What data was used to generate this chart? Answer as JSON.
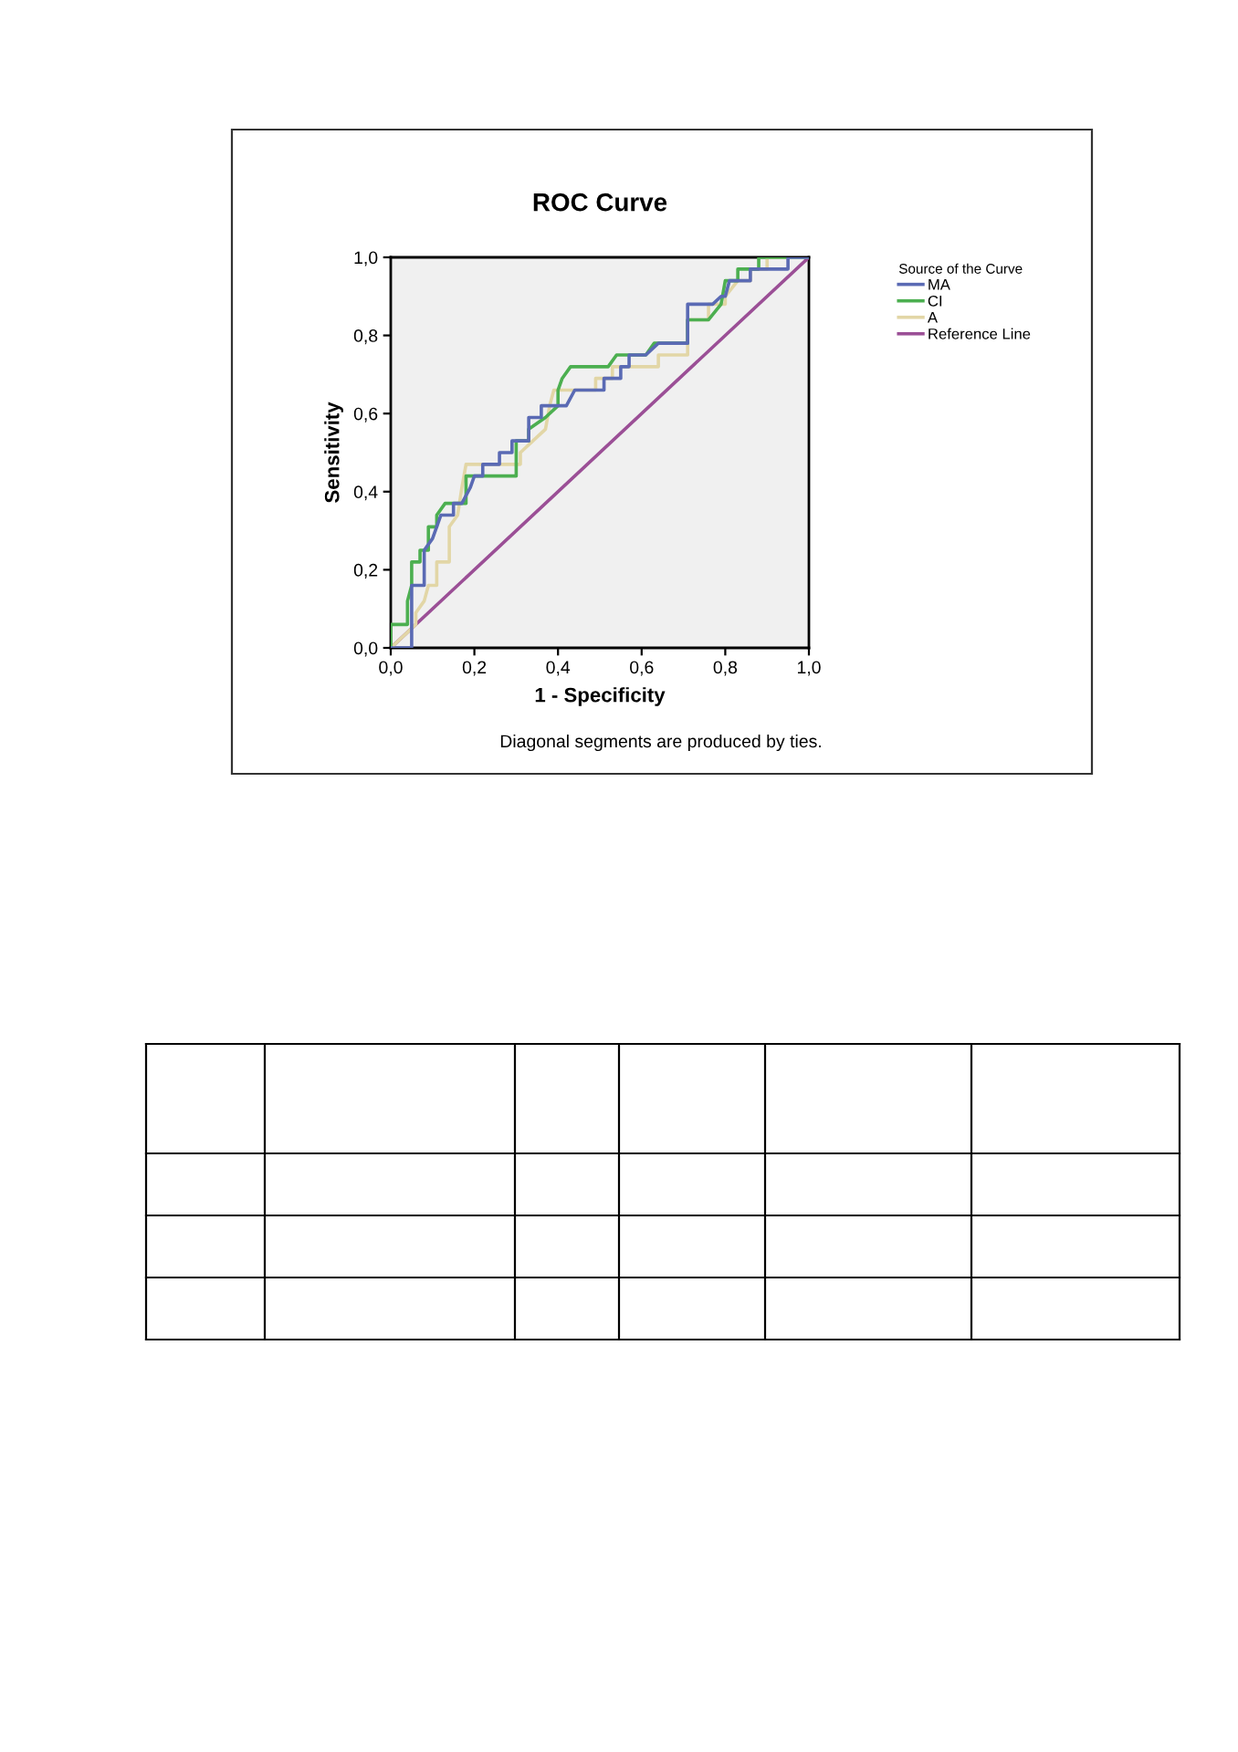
{
  "chart_data": {
    "type": "line",
    "title": "ROC Curve",
    "xlabel": "1 - Specificity",
    "ylabel": "Sensitivity",
    "legend_title": "Source of the Curve",
    "legend": "right",
    "annotations": [
      "Diagonal segments are produced by ties."
    ],
    "xlim": [
      0,
      1
    ],
    "ylim": [
      0,
      1
    ],
    "xticks": [
      {
        "value": 0,
        "label": "0,0"
      },
      {
        "value": 0.2,
        "label": "0,2"
      },
      {
        "value": 0.4,
        "label": "0,4"
      },
      {
        "value": 0.6,
        "label": "0,6"
      },
      {
        "value": 0.8,
        "label": "0,8"
      },
      {
        "value": 1,
        "label": "1,0"
      }
    ],
    "yticks": [
      {
        "value": 0,
        "label": "0,0"
      },
      {
        "value": 0.2,
        "label": "0,2"
      },
      {
        "value": 0.4,
        "label": "0,4"
      },
      {
        "value": 0.6,
        "label": "0,6"
      },
      {
        "value": 0.8,
        "label": "0,8"
      },
      {
        "value": 1,
        "label": "1,0"
      }
    ],
    "grid": false,
    "series": [
      {
        "name": "MA",
        "color": "#5a6ab4",
        "x": [
          0,
          0.05,
          0.05,
          0.08,
          0.08,
          0.1,
          0.12,
          0.15,
          0.15,
          0.17,
          0.19,
          0.2,
          0.22,
          0.22,
          0.26,
          0.26,
          0.29,
          0.29,
          0.33,
          0.33,
          0.36,
          0.36,
          0.42,
          0.44,
          0.51,
          0.51,
          0.55,
          0.55,
          0.57,
          0.57,
          0.61,
          0.64,
          0.71,
          0.71,
          0.77,
          0.79,
          0.8,
          0.81,
          0.86,
          0.86,
          0.95,
          0.95,
          1
        ],
        "values": [
          0,
          0,
          0.16,
          0.16,
          0.25,
          0.28,
          0.34,
          0.34,
          0.37,
          0.37,
          0.41,
          0.44,
          0.44,
          0.47,
          0.47,
          0.5,
          0.5,
          0.53,
          0.53,
          0.59,
          0.59,
          0.62,
          0.62,
          0.66,
          0.66,
          0.69,
          0.69,
          0.72,
          0.72,
          0.75,
          0.75,
          0.78,
          0.78,
          0.88,
          0.88,
          0.9,
          0.9,
          0.94,
          0.94,
          0.97,
          0.97,
          1,
          1
        ]
      },
      {
        "name": "CI",
        "color": "#4caf50",
        "x": [
          0,
          0,
          0.04,
          0.04,
          0.05,
          0.05,
          0.07,
          0.07,
          0.09,
          0.09,
          0.11,
          0.11,
          0.13,
          0.18,
          0.18,
          0.3,
          0.3,
          0.33,
          0.33,
          0.37,
          0.4,
          0.4,
          0.41,
          0.43,
          0.52,
          0.54,
          0.61,
          0.63,
          0.71,
          0.71,
          0.76,
          0.79,
          0.8,
          0.83,
          0.83,
          0.88,
          0.88,
          1
        ],
        "values": [
          0,
          0.06,
          0.06,
          0.12,
          0.16,
          0.22,
          0.22,
          0.25,
          0.25,
          0.31,
          0.31,
          0.34,
          0.37,
          0.37,
          0.44,
          0.44,
          0.53,
          0.53,
          0.56,
          0.59,
          0.62,
          0.66,
          0.69,
          0.72,
          0.72,
          0.75,
          0.75,
          0.78,
          0.78,
          0.84,
          0.84,
          0.88,
          0.94,
          0.94,
          0.97,
          0.97,
          1,
          1
        ]
      },
      {
        "name": "A",
        "color": "#e2d6a6",
        "x": [
          0,
          0.06,
          0.06,
          0.08,
          0.09,
          0.11,
          0.11,
          0.14,
          0.14,
          0.16,
          0.17,
          0.18,
          0.31,
          0.31,
          0.34,
          0.37,
          0.38,
          0.39,
          0.49,
          0.49,
          0.53,
          0.53,
          0.64,
          0.64,
          0.71,
          0.71,
          0.76,
          0.76,
          0.8,
          0.8,
          0.83,
          0.86,
          0.86,
          0.9,
          0.9,
          1
        ],
        "values": [
          0,
          0.06,
          0.09,
          0.12,
          0.16,
          0.16,
          0.22,
          0.22,
          0.31,
          0.34,
          0.41,
          0.47,
          0.47,
          0.5,
          0.53,
          0.56,
          0.62,
          0.66,
          0.66,
          0.69,
          0.69,
          0.72,
          0.72,
          0.75,
          0.75,
          0.84,
          0.84,
          0.88,
          0.88,
          0.9,
          0.94,
          0.94,
          0.97,
          0.97,
          1,
          1
        ]
      },
      {
        "name": "Reference Line",
        "color": "#9b4f96",
        "x": [
          0,
          1
        ],
        "values": [
          0,
          1
        ]
      }
    ]
  }
}
